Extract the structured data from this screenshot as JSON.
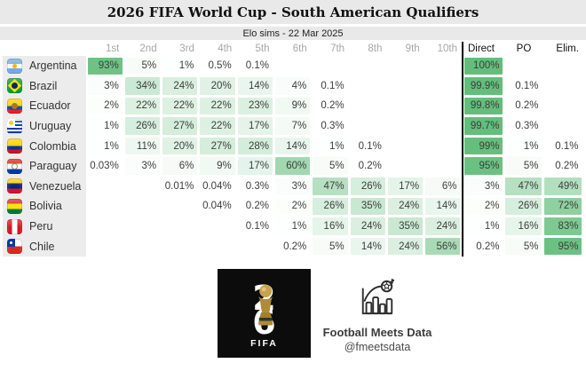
{
  "header": {
    "title": "2026 FIFA World Cup - South American Qualifiers",
    "subtitle": "Elo sims - 22 Mar 2025"
  },
  "chart_data": {
    "type": "heatmap",
    "title": "2026 FIFA World Cup - South American Qualifiers",
    "subtitle": "Elo sims - 22 Mar 2025",
    "columns": [
      "1st",
      "2nd",
      "3rd",
      "4th",
      "5th",
      "6th",
      "7th",
      "8th",
      "9th",
      "10th",
      "Direct",
      "PO",
      "Elim."
    ],
    "rows": [
      {
        "team": "Argentina",
        "flag": "argentina",
        "values": [
          "93%",
          "5%",
          "1%",
          "0.5%",
          "0.1%",
          "",
          "",
          "",
          "",
          "",
          "100%",
          "",
          ""
        ]
      },
      {
        "team": "Brazil",
        "flag": "brazil",
        "values": [
          "3%",
          "34%",
          "24%",
          "20%",
          "14%",
          "4%",
          "0.1%",
          "",
          "",
          "",
          "99.9%",
          "0.1%",
          ""
        ]
      },
      {
        "team": "Ecuador",
        "flag": "ecuador",
        "values": [
          "2%",
          "22%",
          "22%",
          "22%",
          "23%",
          "9%",
          "0.2%",
          "",
          "",
          "",
          "99.8%",
          "0.2%",
          ""
        ]
      },
      {
        "team": "Uruguay",
        "flag": "uruguay",
        "values": [
          "1%",
          "26%",
          "27%",
          "22%",
          "17%",
          "7%",
          "0.3%",
          "",
          "",
          "",
          "99.7%",
          "0.3%",
          ""
        ]
      },
      {
        "team": "Colombia",
        "flag": "colombia",
        "values": [
          "1%",
          "11%",
          "20%",
          "27%",
          "28%",
          "14%",
          "1%",
          "0.1%",
          "",
          "",
          "99%",
          "1%",
          "0.1%"
        ]
      },
      {
        "team": "Paraguay",
        "flag": "paraguay",
        "values": [
          "0.03%",
          "3%",
          "6%",
          "9%",
          "17%",
          "60%",
          "5%",
          "0.2%",
          "",
          "",
          "95%",
          "5%",
          "0.2%"
        ]
      },
      {
        "team": "Venezuela",
        "flag": "venezuela",
        "values": [
          "",
          "",
          "0.01%",
          "0.04%",
          "0.3%",
          "3%",
          "47%",
          "26%",
          "17%",
          "6%",
          "3%",
          "47%",
          "49%"
        ]
      },
      {
        "team": "Bolivia",
        "flag": "bolivia",
        "values": [
          "",
          "",
          "",
          "0.04%",
          "0.2%",
          "2%",
          "26%",
          "35%",
          "24%",
          "14%",
          "2%",
          "26%",
          "72%"
        ]
      },
      {
        "team": "Peru",
        "flag": "peru",
        "values": [
          "",
          "",
          "",
          "",
          "0.1%",
          "1%",
          "16%",
          "24%",
          "35%",
          "24%",
          "1%",
          "16%",
          "83%"
        ]
      },
      {
        "team": "Chile",
        "flag": "chile",
        "values": [
          "",
          "",
          "",
          "",
          "",
          "0.2%",
          "5%",
          "14%",
          "24%",
          "56%",
          "0.2%",
          "5%",
          "95%"
        ]
      }
    ],
    "legend_position": "none",
    "grid": false
  },
  "colors": {
    "cell_green": "#63be7b",
    "name_column_bg": "#ececec",
    "band_bg": "#e9e9e9",
    "separator": "#000000"
  },
  "footer": {
    "fifa_logo": {
      "line1": "2",
      "line2": "6",
      "label": "FIFA"
    },
    "fmd": {
      "name": "Football Meets Data",
      "handle": "@fmeetsdata"
    }
  }
}
